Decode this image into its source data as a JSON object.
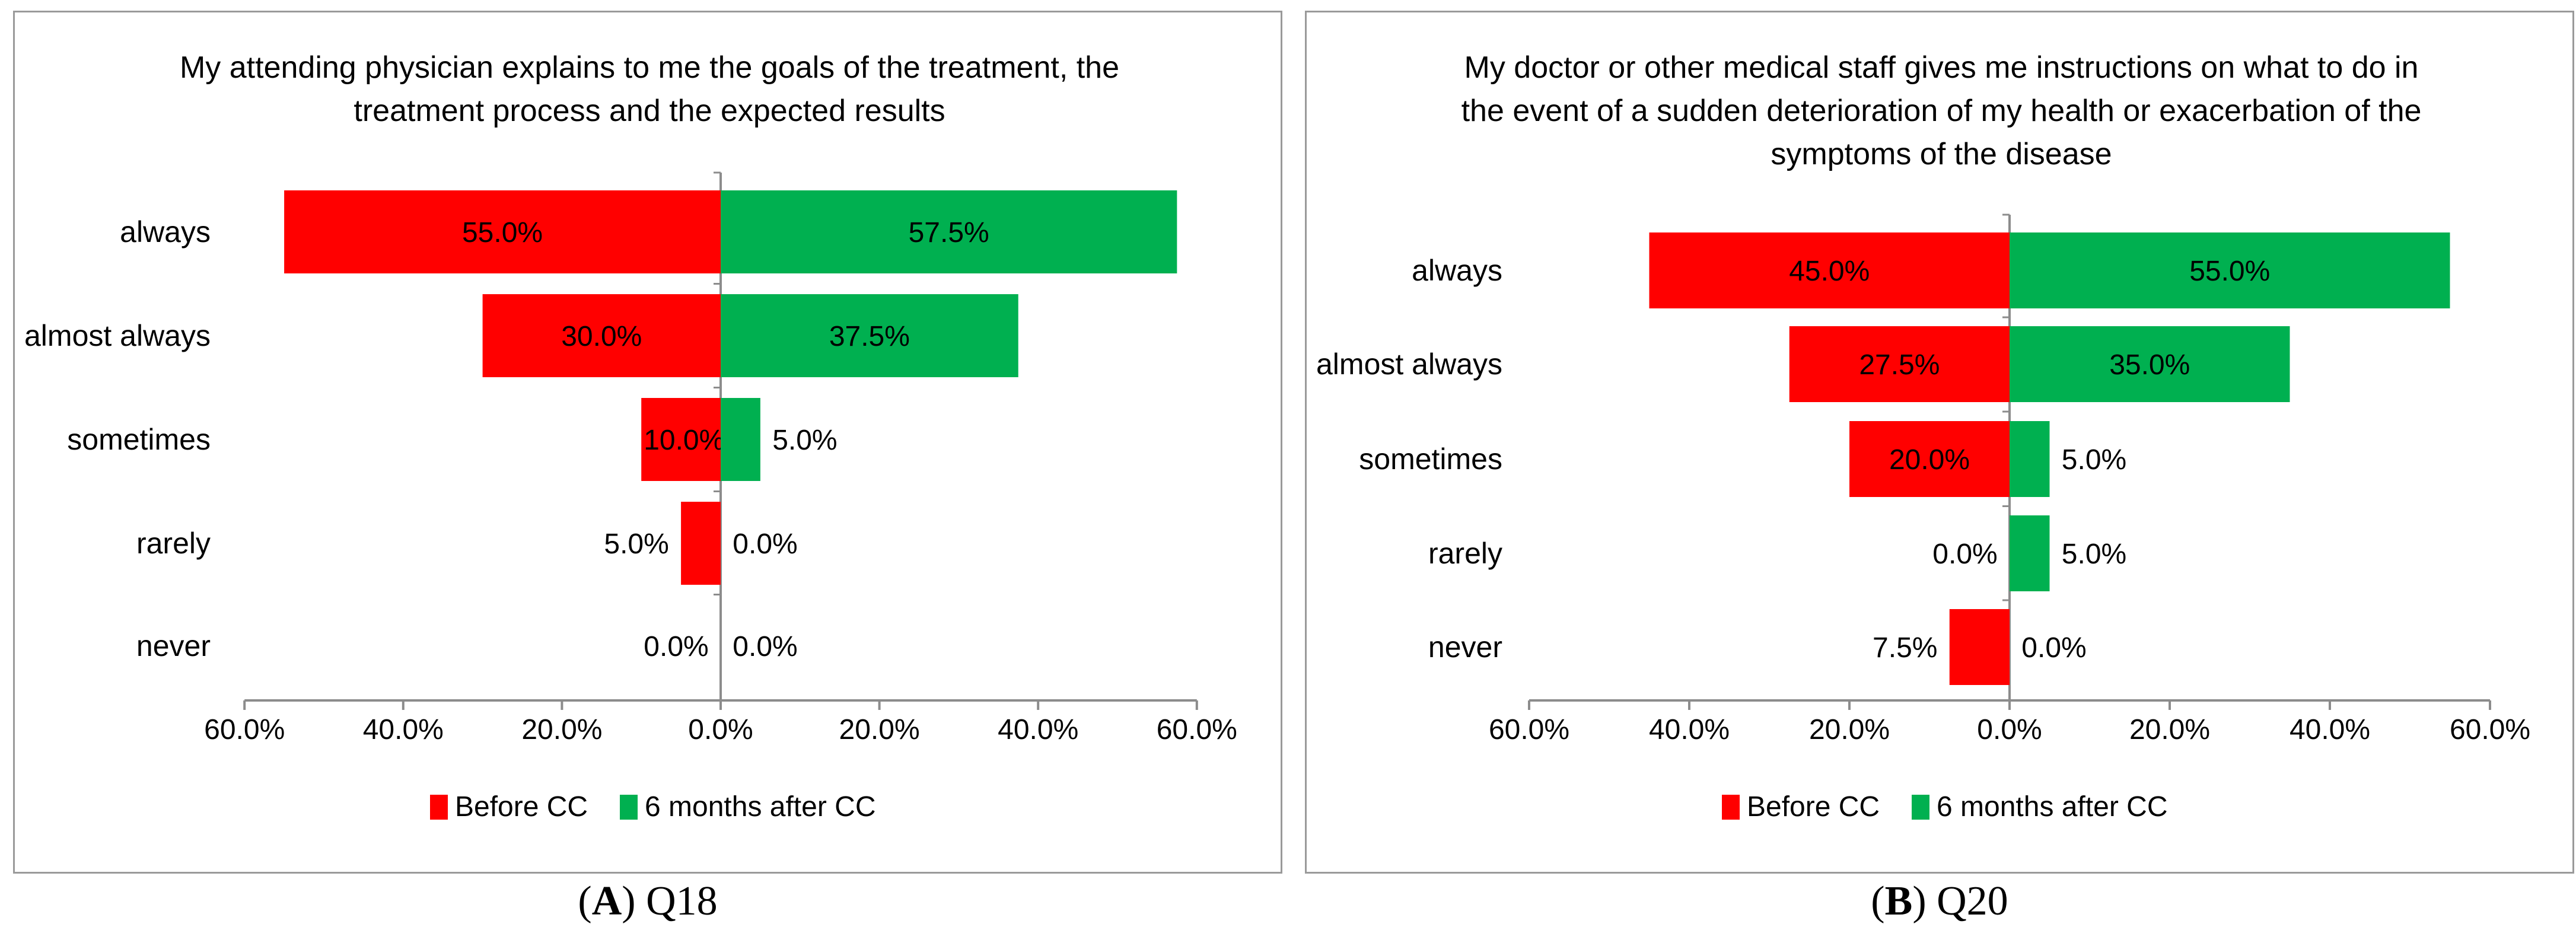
{
  "chart_data": [
    {
      "type": "bar",
      "orientation": "horizontal-diverging",
      "panel_letter": "A",
      "panel_label": "Q18",
      "title_lines": [
        "My attending physician explains to me the goals of the treatment, the",
        "treatment process and the expected results"
      ],
      "categories": [
        "always",
        "almost always",
        "sometimes",
        "rarely",
        "never"
      ],
      "series": [
        {
          "name": "Before CC",
          "values": [
            55.0,
            30.0,
            10.0,
            5.0,
            0.0
          ],
          "color": "#ff0000",
          "direction": "left"
        },
        {
          "name": "6 months after CC",
          "values": [
            57.5,
            37.5,
            5.0,
            0.0,
            0.0
          ],
          "color": "#00b050",
          "direction": "right"
        }
      ],
      "data_labels": [
        [
          "55.0%",
          "30.0%",
          "10.0%",
          "5.0%",
          "0.0%"
        ],
        [
          "57.5%",
          "37.5%",
          "5.0%",
          "0.0%",
          "0.0%"
        ]
      ],
      "xlim": [
        -60,
        60
      ],
      "x_ticks": [
        "60.0%",
        "40.0%",
        "20.0%",
        "0.0%",
        "20.0%",
        "40.0%",
        "60.0%"
      ],
      "legend_position": "bottom",
      "grid": false
    },
    {
      "type": "bar",
      "orientation": "horizontal-diverging",
      "panel_letter": "B",
      "panel_label": "Q20",
      "title_lines": [
        "My doctor or other medical staff gives me instructions on what to do in",
        "the event of a sudden deterioration of my health or exacerbation of the",
        "symptoms of the disease"
      ],
      "categories": [
        "always",
        "almost always",
        "sometimes",
        "rarely",
        "never"
      ],
      "series": [
        {
          "name": "Before CC",
          "values": [
            45.0,
            27.5,
            20.0,
            0.0,
            7.5
          ],
          "color": "#ff0000",
          "direction": "left"
        },
        {
          "name": "6 months after CC",
          "values": [
            55.0,
            35.0,
            5.0,
            5.0,
            0.0
          ],
          "color": "#00b050",
          "direction": "right"
        }
      ],
      "data_labels": [
        [
          "45.0%",
          "27.5%",
          "20.0%",
          "0.0%",
          "7.5%"
        ],
        [
          "55.0%",
          "35.0%",
          "5.0%",
          "5.0%",
          "0.0%"
        ]
      ],
      "xlim": [
        -60,
        60
      ],
      "x_ticks": [
        "60.0%",
        "40.0%",
        "20.0%",
        "0.0%",
        "20.0%",
        "40.0%",
        "60.0%"
      ],
      "legend_position": "bottom",
      "grid": false
    }
  ]
}
